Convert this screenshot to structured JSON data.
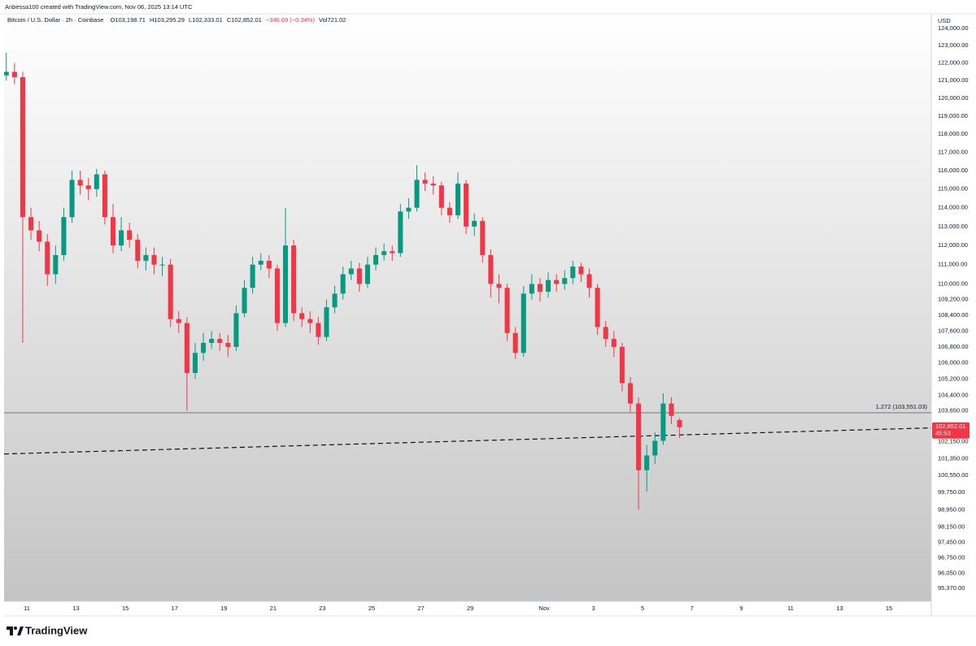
{
  "chart_data": {
    "type": "candlestick",
    "author_line": "Anbessa100 created with TradingView.com, Nov 06, 2025 13:14 UTC",
    "symbol": "Bitcoin / U.S. Dollar · 2h · Coinbase",
    "ohlc": [
      {
        "key": "O",
        "value": "103,198.71"
      },
      {
        "key": "H",
        "value": "103,295.29"
      },
      {
        "key": "L",
        "value": "102,333.01"
      },
      {
        "key": "C",
        "value": "102,852.01"
      }
    ],
    "change": "−346.69 (−0.34%)",
    "volume": {
      "key": "Vol",
      "value": "721.02"
    },
    "currency": "USD",
    "brand": "TradingView",
    "log_scale": true,
    "grid": false,
    "up_color": "#089981",
    "down_color": "#f23645",
    "categories": [
      null,
      null,
      null,
      "11",
      null,
      null,
      null,
      null,
      null,
      "13",
      null,
      null,
      null,
      null,
      null,
      "15",
      null,
      null,
      null,
      null,
      null,
      "17",
      null,
      null,
      null,
      null,
      null,
      "19",
      null,
      null,
      null,
      null,
      null,
      "21",
      null,
      null,
      null,
      null,
      null,
      "23",
      null,
      null,
      null,
      null,
      null,
      "25",
      null,
      null,
      null,
      null,
      null,
      "27",
      null,
      null,
      null,
      null,
      null,
      "29",
      null,
      null,
      null,
      null,
      null,
      null,
      null,
      null,
      "Nov",
      null,
      null,
      null,
      null,
      null,
      "3",
      null,
      null,
      null,
      null,
      null,
      "5",
      null,
      null,
      null,
      null,
      null,
      "7",
      null,
      null,
      null,
      null,
      null,
      "9",
      null,
      null,
      null,
      null,
      null,
      "11",
      null,
      null,
      null,
      null,
      null,
      "13",
      null,
      null,
      null,
      null,
      null,
      "15",
      null,
      null
    ],
    "open": [
      121300,
      121500,
      121200,
      113500,
      112800,
      112200,
      110500,
      111500,
      113500,
      115500,
      115200,
      115000,
      115800,
      113500,
      112000,
      112800,
      112300,
      111200,
      111500,
      111000,
      111000,
      108200,
      108000,
      105500,
      106500,
      107000,
      107200,
      107000,
      106800,
      108500,
      109800,
      111000,
      111200,
      110800,
      108000,
      112000,
      108500,
      108200,
      108000,
      107300,
      108800,
      109500,
      110500,
      110800,
      110000,
      111000,
      111500,
      111700,
      111600,
      113800,
      114000,
      115500,
      115300,
      115200,
      114000,
      113600,
      115300,
      113000,
      113300,
      111500,
      110000,
      109800,
      107500,
      106500,
      109500,
      110000,
      109600,
      110200,
      110000,
      110300,
      110900,
      110500,
      109800,
      107800,
      107200,
      106800,
      105000,
      104000,
      100800,
      101500,
      102200,
      104000,
      103198.71,
      null,
      null,
      null,
      null,
      null,
      null,
      null,
      null,
      null,
      null,
      null,
      null,
      null,
      null,
      null,
      null,
      null,
      null,
      null,
      null,
      null,
      null,
      null,
      null,
      null,
      null,
      null,
      null
    ],
    "high": [
      122600,
      122000,
      121500,
      114000,
      113300,
      112600,
      112000,
      114000,
      116000,
      116000,
      115600,
      116100,
      116000,
      114200,
      113500,
      113200,
      112600,
      111900,
      111900,
      111400,
      111300,
      108600,
      108300,
      107000,
      107500,
      107600,
      107500,
      107400,
      108900,
      110200,
      111400,
      111600,
      111500,
      111000,
      114000,
      112300,
      108800,
      108600,
      108300,
      109200,
      109900,
      110900,
      111200,
      111100,
      111400,
      111900,
      112100,
      112000,
      114200,
      114500,
      116300,
      115900,
      115700,
      115400,
      114300,
      115900,
      115500,
      113700,
      113500,
      111800,
      110500,
      110000,
      107800,
      109900,
      110500,
      110300,
      110600,
      110500,
      110700,
      111200,
      111100,
      110800,
      110000,
      108100,
      107600,
      107000,
      105300,
      104300,
      102000,
      102600,
      104500,
      104300,
      103295.29,
      null,
      null,
      null,
      null,
      null,
      null,
      null,
      null,
      null,
      null,
      null,
      null,
      null,
      null,
      null,
      null,
      null,
      null,
      null,
      null,
      null,
      null,
      null,
      null,
      null,
      null,
      null,
      null
    ],
    "low": [
      121000,
      120800,
      107000,
      112300,
      111700,
      109900,
      110000,
      111200,
      113200,
      114700,
      114400,
      114600,
      113100,
      111600,
      111700,
      111900,
      110800,
      110700,
      110500,
      110400,
      107800,
      107500,
      103650,
      105200,
      106100,
      106700,
      106600,
      106300,
      106600,
      108300,
      109500,
      110700,
      110300,
      107600,
      107800,
      108100,
      107800,
      107500,
      106900,
      107100,
      108500,
      109200,
      110200,
      109600,
      109800,
      110700,
      111200,
      111200,
      111400,
      113400,
      113800,
      114900,
      114700,
      113600,
      113200,
      113400,
      112600,
      112500,
      111100,
      109300,
      109000,
      107100,
      106200,
      106300,
      109200,
      109100,
      109300,
      109600,
      109700,
      110000,
      110100,
      109300,
      107400,
      106800,
      106300,
      104600,
      103600,
      98950,
      99800,
      101100,
      102000,
      103000,
      102333.01,
      null,
      null,
      null,
      null,
      null,
      null,
      null,
      null,
      null,
      null,
      null,
      null,
      null,
      null,
      null,
      null,
      null,
      null,
      null,
      null,
      null,
      null,
      null,
      null,
      null,
      null,
      null,
      null
    ],
    "close": [
      121500,
      121200,
      113500,
      112800,
      112200,
      110500,
      111500,
      113500,
      115500,
      115200,
      115000,
      115800,
      113500,
      112000,
      112800,
      112300,
      111200,
      111500,
      111000,
      111000,
      108200,
      108000,
      105500,
      106500,
      107000,
      107200,
      107000,
      106800,
      108500,
      109800,
      111000,
      111200,
      110800,
      108000,
      112000,
      108500,
      108200,
      108000,
      107300,
      108800,
      109500,
      110500,
      110800,
      110000,
      111000,
      111500,
      111700,
      111600,
      113800,
      114000,
      115500,
      115300,
      115200,
      114000,
      113600,
      115300,
      113000,
      113300,
      111500,
      110000,
      109800,
      107500,
      106500,
      109500,
      110000,
      109600,
      110200,
      110000,
      110300,
      110900,
      110500,
      109800,
      107800,
      107200,
      106800,
      105000,
      104000,
      100800,
      101500,
      102200,
      104000,
      103400,
      102852.01,
      null,
      null,
      null,
      null,
      null,
      null,
      null,
      null,
      null,
      null,
      null,
      null,
      null,
      null,
      null,
      null,
      null,
      null,
      null,
      null,
      null,
      null,
      null,
      null,
      null,
      null,
      null,
      null
    ],
    "ylim": [
      94790,
      124710
    ],
    "yticks": [
      {
        "value": 124000,
        "label": "124,000.00"
      },
      {
        "value": 123000,
        "label": "123,000.00"
      },
      {
        "value": 122000,
        "label": "122,000.00"
      },
      {
        "value": 121000,
        "label": "121,000.00"
      },
      {
        "value": 120000,
        "label": "120,000.00"
      },
      {
        "value": 119000,
        "label": "119,000.00"
      },
      {
        "value": 118000,
        "label": "118,000.00"
      },
      {
        "value": 117000,
        "label": "117,000.00"
      },
      {
        "value": 116000,
        "label": "116,000.00"
      },
      {
        "value": 115000,
        "label": "115,000.00"
      },
      {
        "value": 114000,
        "label": "114,000.00"
      },
      {
        "value": 113000,
        "label": "113,000.00"
      },
      {
        "value": 112000,
        "label": "112,000.00"
      },
      {
        "value": 111000,
        "label": "111,000.00"
      },
      {
        "value": 110000,
        "label": "110,000.00"
      },
      {
        "value": 109200,
        "label": "109,200.00"
      },
      {
        "value": 108400,
        "label": "108,400.00"
      },
      {
        "value": 107600,
        "label": "107,600.00"
      },
      {
        "value": 106800,
        "label": "106,800.00"
      },
      {
        "value": 106000,
        "label": "106,000.00"
      },
      {
        "value": 105200,
        "label": "105,200.00"
      },
      {
        "value": 104400,
        "label": "104,400.00"
      },
      {
        "value": 103650,
        "label": "103,650.00"
      },
      {
        "value": 102150,
        "label": "102,150.00"
      },
      {
        "value": 101350,
        "label": "101,350.00"
      },
      {
        "value": 100550,
        "label": "100,550.00"
      },
      {
        "value": 99750,
        "label": "99,750.00"
      },
      {
        "value": 98950,
        "label": "98,950.00"
      },
      {
        "value": 98150,
        "label": "98,150.00"
      },
      {
        "value": 97450,
        "label": "97,450.00"
      },
      {
        "value": 96750,
        "label": "96,750.00"
      },
      {
        "value": 96050,
        "label": "96,050.00"
      },
      {
        "value": 95370,
        "label": "95,370.00"
      }
    ],
    "level": {
      "value": 103551.03,
      "label": "1.272 (103,551.03)"
    },
    "trendline": [
      101570,
      102820
    ],
    "last_price": {
      "value": 102852.01,
      "label": "102,852.01",
      "countdown": "45:53"
    }
  }
}
